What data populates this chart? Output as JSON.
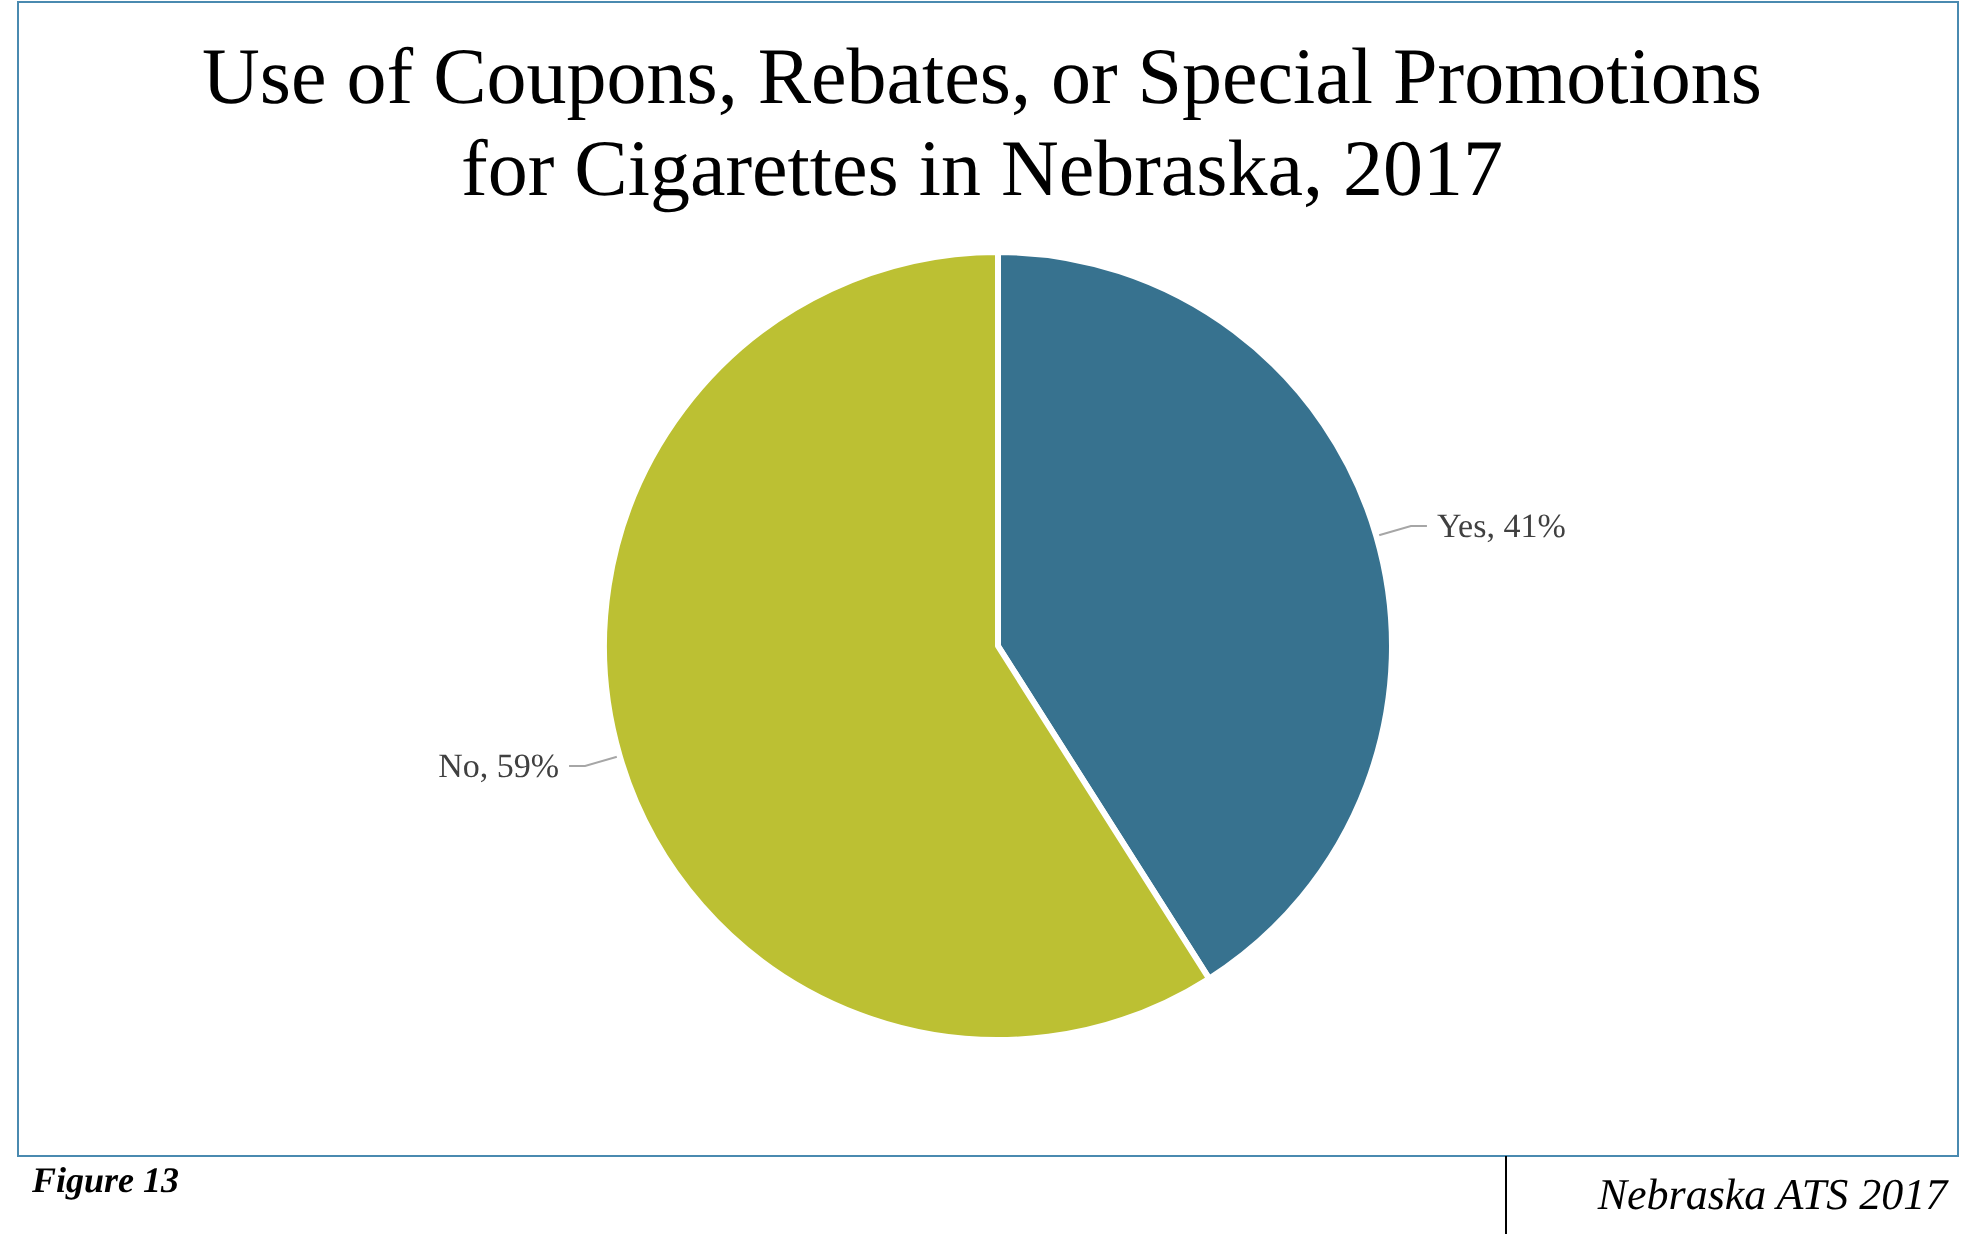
{
  "chart_data": {
    "type": "pie",
    "title": "Use of Coupons, Rebates, or Special Promotions\nfor Cigarettes in Nebraska, 2017",
    "categories": [
      "Yes",
      "No"
    ],
    "values": [
      41,
      59
    ],
    "colors": [
      "#37728f",
      "#bcc033"
    ],
    "value_labels": [
      "41%",
      "59%"
    ],
    "annotations": [
      "Figure 13",
      "Nebraska ATS 2017"
    ]
  }
}
